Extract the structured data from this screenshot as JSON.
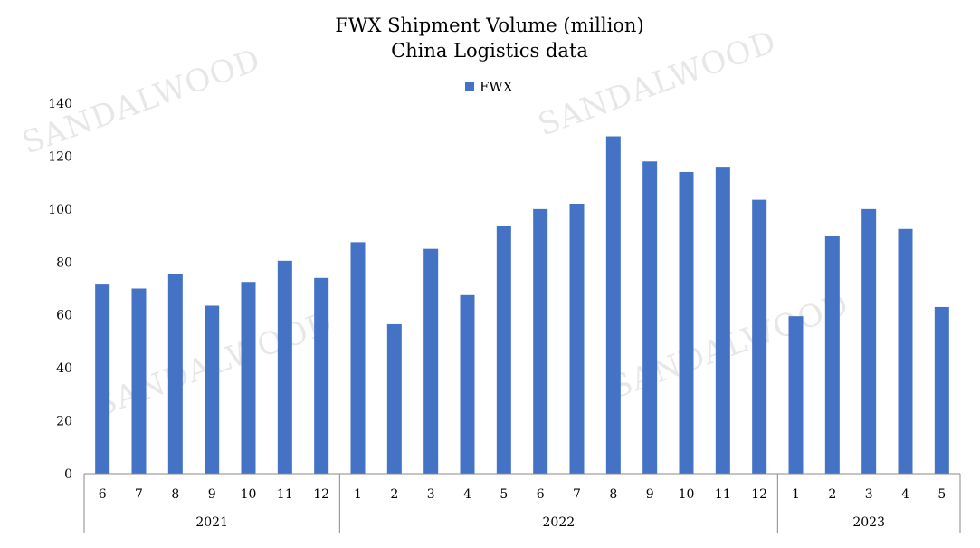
{
  "watermark": "SANDALWOOD",
  "chart_data": {
    "type": "bar",
    "title": "FWX Shipment Volume (million)",
    "subtitle": "China Logistics data",
    "legend": {
      "entries": [
        "FWX"
      ],
      "placement": "top"
    },
    "series": [
      {
        "name": "FWX",
        "color": "#4472C4",
        "values": [
          71.5,
          70,
          75.5,
          63.5,
          72.5,
          80.5,
          74,
          87.5,
          56.5,
          85,
          67.5,
          93.5,
          100,
          102,
          127.5,
          118,
          114,
          116,
          103.5,
          59.5,
          90,
          100,
          92.5,
          63
        ]
      }
    ],
    "categories": [
      "6",
      "7",
      "8",
      "9",
      "10",
      "11",
      "12",
      "1",
      "2",
      "3",
      "4",
      "5",
      "6",
      "7",
      "8",
      "9",
      "10",
      "11",
      "12",
      "1",
      "2",
      "3",
      "4",
      "5"
    ],
    "groups": [
      {
        "label": "2021",
        "count": 7
      },
      {
        "label": "2022",
        "count": 12
      },
      {
        "label": "2023",
        "count": 5
      }
    ],
    "ylim": [
      0,
      140
    ],
    "yticks": [
      "0",
      "20",
      "40",
      "60",
      "80",
      "100",
      "120",
      "140"
    ],
    "grid": false
  }
}
